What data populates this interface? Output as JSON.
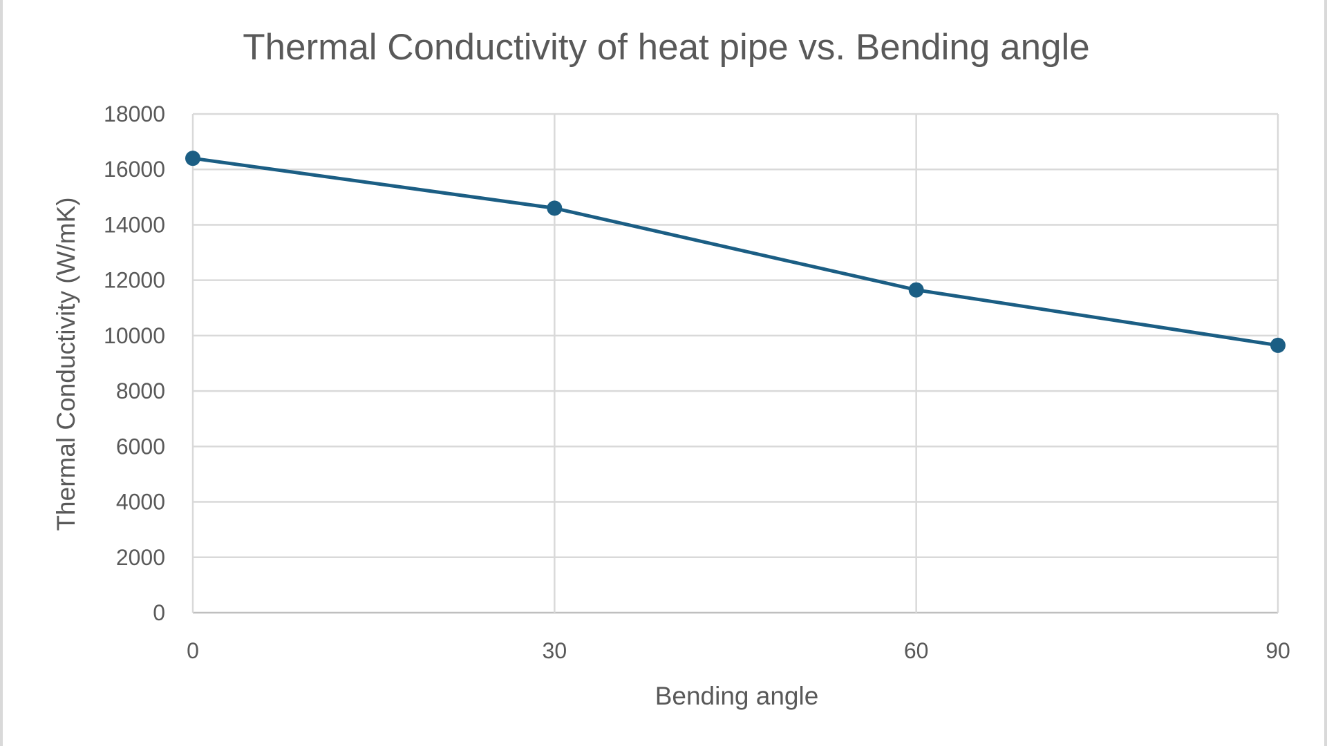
{
  "chart_data": {
    "type": "line",
    "title": "Thermal Conductivity of heat pipe vs. Bending angle",
    "xlabel": "Bending angle",
    "ylabel": "Thermal Conductivity (W/mK)",
    "x": [
      0,
      30,
      60,
      90
    ],
    "x_tick_labels": [
      "0",
      "30",
      "60",
      "90"
    ],
    "y_tick_labels": [
      "0",
      "2000",
      "4000",
      "6000",
      "8000",
      "10000",
      "12000",
      "14000",
      "16000",
      "18000"
    ],
    "ylim": [
      0,
      18000
    ],
    "xlim": [
      0,
      90
    ],
    "grid": true,
    "legend": "none",
    "series": [
      {
        "values": [
          16400,
          14600,
          11650,
          9650
        ],
        "color": "#1b5e84"
      }
    ]
  }
}
